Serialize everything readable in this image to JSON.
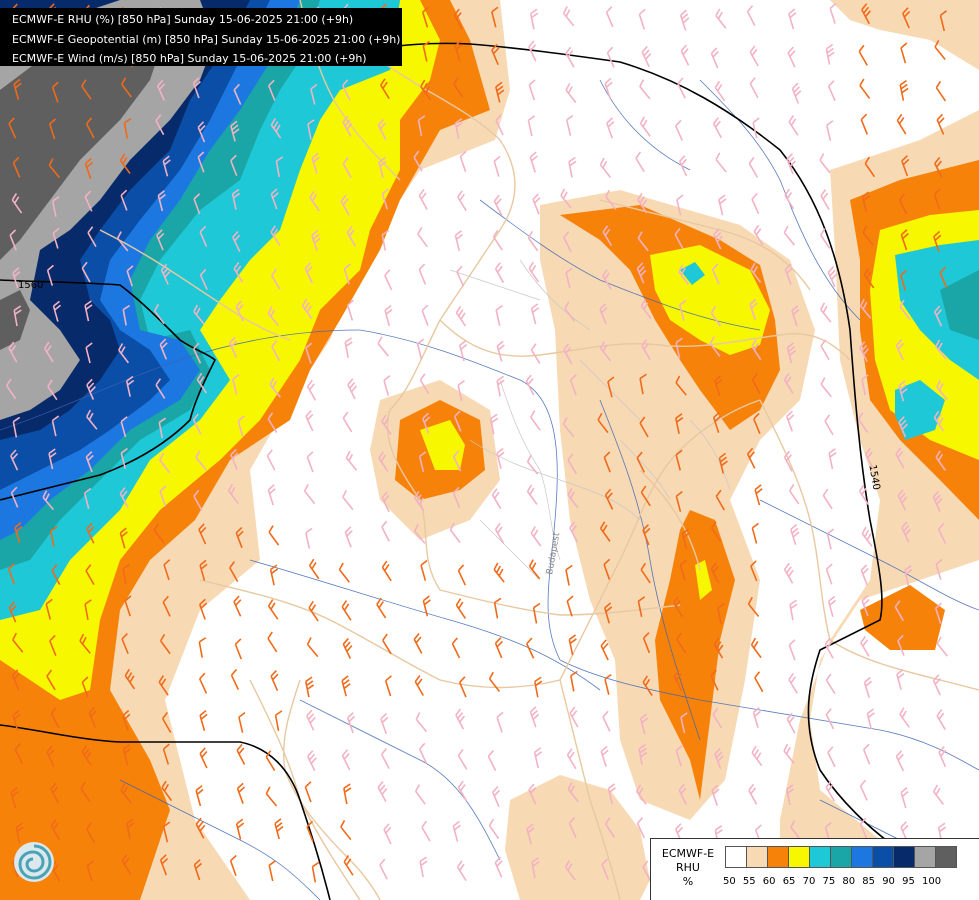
{
  "titles": [
    "ECMWF-E RHU (%) [850 hPa] Sunday 15-06-2025 21:00 (+9h)",
    "ECMWF-E Geopotential (m) [850 hPa] Sunday 15-06-2025 21:00 (+9h)",
    "ECMWF-E Wind (m/s) [850 hPa] Sunday 15-06-2025 21:00 (+9h)"
  ],
  "legend": {
    "title_lines": [
      "ECMWF-E",
      "RHU",
      "%"
    ],
    "ticks": [
      "50",
      "55",
      "60",
      "65",
      "70",
      "75",
      "80",
      "85",
      "90",
      "95",
      "100"
    ],
    "colors": [
      "#ffffff",
      "#f7d9b4",
      "#f7820a",
      "#f7f700",
      "#1ec8d6",
      "#1aa6a6",
      "#1c78e0",
      "#0a4ea8",
      "#062a6a",
      "#a5a5a5",
      "#5f5f5f"
    ]
  },
  "contour_labels": [
    "1560",
    "1540"
  ],
  "map_labels": [
    "Budapest"
  ],
  "logo": "ecmwf-swirl-icon"
}
